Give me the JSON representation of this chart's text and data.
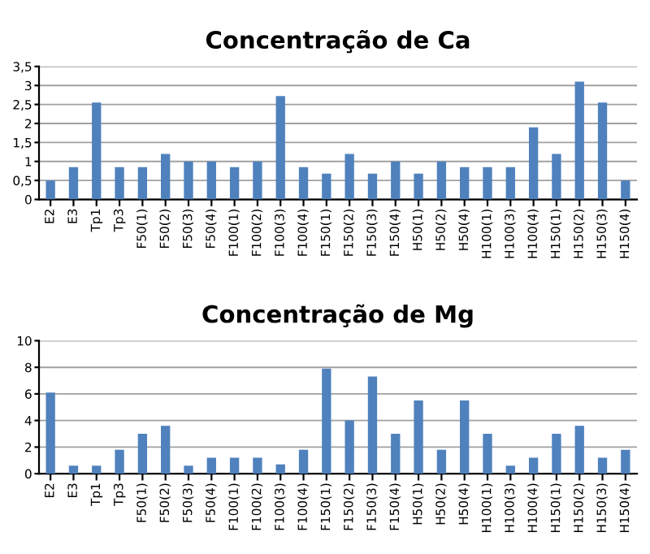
{
  "chart_data": [
    {
      "type": "bar",
      "title": "Concentração de Ca",
      "categories": [
        "E2",
        "E3",
        "Tp1",
        "Tp3",
        "F50(1)",
        "F50(2)",
        "F50(3)",
        "F50(4)",
        "F100(1)",
        "F100(2)",
        "F100(3)",
        "F100(4)",
        "F150(1)",
        "F150(2)",
        "F150(3)",
        "F150(4)",
        "H50(1)",
        "H50(2)",
        "H50(4)",
        "H100(1)",
        "H100(3)",
        "H100(4)",
        "H150(1)",
        "H150(2)",
        "H150(3)",
        "H150(4)"
      ],
      "values": [
        0.5,
        0.85,
        2.55,
        0.85,
        0.85,
        1.2,
        1.0,
        1.0,
        0.85,
        1.0,
        2.72,
        0.85,
        0.68,
        1.2,
        0.68,
        1.0,
        0.68,
        1.0,
        0.85,
        0.85,
        0.85,
        1.9,
        1.2,
        3.1,
        2.55,
        0.5
      ],
      "color": "#4f81bd",
      "ylim": [
        0,
        3.5
      ],
      "yticks": [
        {
          "value": 0,
          "label": "0"
        },
        {
          "value": 0.5,
          "label": "0,5"
        },
        {
          "value": 1,
          "label": "1"
        },
        {
          "value": 1.5,
          "label": "1,5"
        },
        {
          "value": 2,
          "label": "2"
        },
        {
          "value": 2.5,
          "label": "2,5"
        },
        {
          "value": 3,
          "label": "3"
        },
        {
          "value": 3.5,
          "label": "3,5"
        }
      ],
      "grid": "y"
    },
    {
      "type": "bar",
      "title": "Concentração de Mg",
      "categories": [
        "E2",
        "E3",
        "Tp1",
        "Tp3",
        "F50(1)",
        "F50(2)",
        "F50(3)",
        "F50(4)",
        "F100(1)",
        "F100(2)",
        "F100(3)",
        "F100(4)",
        "F150(1)",
        "F150(2)",
        "F150(3)",
        "F150(4)",
        "H50(1)",
        "H50(2)",
        "H50(4)",
        "H100(1)",
        "H100(3)",
        "H100(4)",
        "H150(1)",
        "H150(2)",
        "H150(3)",
        "H150(4)"
      ],
      "values": [
        6.1,
        0.6,
        0.6,
        1.8,
        3.0,
        3.6,
        0.6,
        1.2,
        1.2,
        1.2,
        0.7,
        1.8,
        7.9,
        4.0,
        7.3,
        3.0,
        5.5,
        1.8,
        5.5,
        3.0,
        0.6,
        1.2,
        3.0,
        3.6,
        1.2,
        1.8
      ],
      "color": "#4f81bd",
      "ylim": [
        0,
        10
      ],
      "yticks": [
        0,
        2,
        4,
        6,
        8,
        10
      ],
      "grid": "y"
    }
  ]
}
